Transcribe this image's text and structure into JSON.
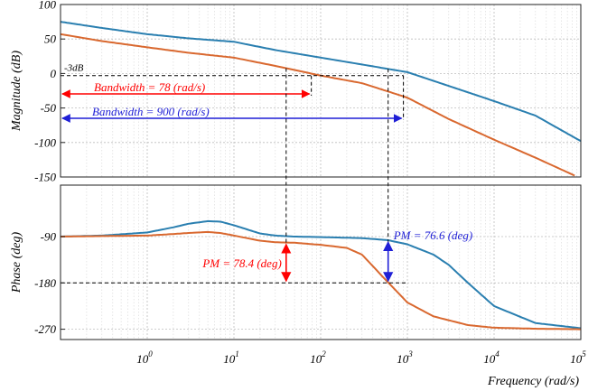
{
  "chart_data": [
    {
      "type": "line",
      "panel": "magnitude",
      "ylabel": "Magnitude (dB)",
      "xscale": "log",
      "xlim": [
        0.1,
        100000
      ],
      "ylim": [
        -150,
        100
      ],
      "yticks": [
        100,
        50,
        0,
        -50,
        -100,
        -150
      ],
      "grid": true,
      "series": [
        {
          "color": "#2a7fb0",
          "x": [
            0.1,
            0.3,
            1,
            3,
            10,
            30,
            100,
            300,
            1000,
            3000,
            10000,
            30000,
            100000
          ],
          "y": [
            75,
            66,
            57,
            51,
            46,
            34,
            23,
            13,
            2,
            -18,
            -40,
            -61,
            -98
          ]
        },
        {
          "color": "#d9682f",
          "x": [
            0.1,
            0.3,
            1,
            3,
            10,
            30,
            100,
            300,
            1000,
            3000,
            10000,
            30000,
            85000
          ],
          "y": [
            57,
            47,
            38,
            30,
            23,
            11,
            -3,
            -14,
            -35,
            -66,
            -96,
            -122,
            -148
          ]
        }
      ],
      "annotations": [
        {
          "text": "-3dB",
          "value": -3
        },
        {
          "text": "Bandwidth = 78 (rad/s)",
          "value": 78,
          "color": "#ff0000"
        },
        {
          "text": "Bandwidth = 900 (rad/s)",
          "value": 900,
          "color": "#1f1fd6"
        }
      ]
    },
    {
      "type": "line",
      "panel": "phase",
      "xlabel": "Frequency (rad/s)",
      "ylabel": "Phase (deg)",
      "xscale": "log",
      "xlim": [
        0.1,
        100000
      ],
      "ylim": [
        -290,
        10
      ],
      "yticks": [
        -90,
        -180,
        -270
      ],
      "xticks": [
        1,
        10,
        100,
        1000,
        10000,
        100000
      ],
      "xtick_labels": [
        {
          "base": "10",
          "exp": "0"
        },
        {
          "base": "10",
          "exp": "1"
        },
        {
          "base": "10",
          "exp": "2"
        },
        {
          "base": "10",
          "exp": "3"
        },
        {
          "base": "10",
          "exp": "4"
        },
        {
          "base": "10",
          "exp": "5"
        }
      ],
      "grid": true,
      "series": [
        {
          "color": "#2a7fb0",
          "x": [
            0.1,
            0.3,
            1,
            2,
            3,
            5,
            7,
            10,
            20,
            30,
            50,
            100,
            300,
            600,
            1000,
            2000,
            3000,
            5000,
            10000,
            30000,
            100000
          ],
          "y": [
            -90,
            -88,
            -82,
            -72,
            -65,
            -60,
            -61,
            -68,
            -84,
            -88,
            -90,
            -91,
            -93,
            -97,
            -105,
            -125,
            -145,
            -180,
            -225,
            -258,
            -268
          ]
        },
        {
          "color": "#d9682f",
          "x": [
            0.1,
            0.3,
            1,
            2,
            3,
            5,
            7,
            10,
            20,
            30,
            50,
            100,
            200,
            300,
            500,
            1000,
            2000,
            5000,
            10000,
            30000,
            100000
          ],
          "y": [
            -90,
            -89,
            -88,
            -85,
            -83,
            -81,
            -83,
            -88,
            -98,
            -101,
            -102,
            -106,
            -112,
            -125,
            -165,
            -218,
            -245,
            -262,
            -267,
            -269,
            -270
          ]
        }
      ],
      "annotations": [
        {
          "text": "PM = 78.4 (deg)",
          "value": 78.4,
          "color": "#ff0000"
        },
        {
          "text": "PM = 76.6 (deg)",
          "value": 76.6,
          "color": "#1f1fd6"
        }
      ]
    }
  ]
}
